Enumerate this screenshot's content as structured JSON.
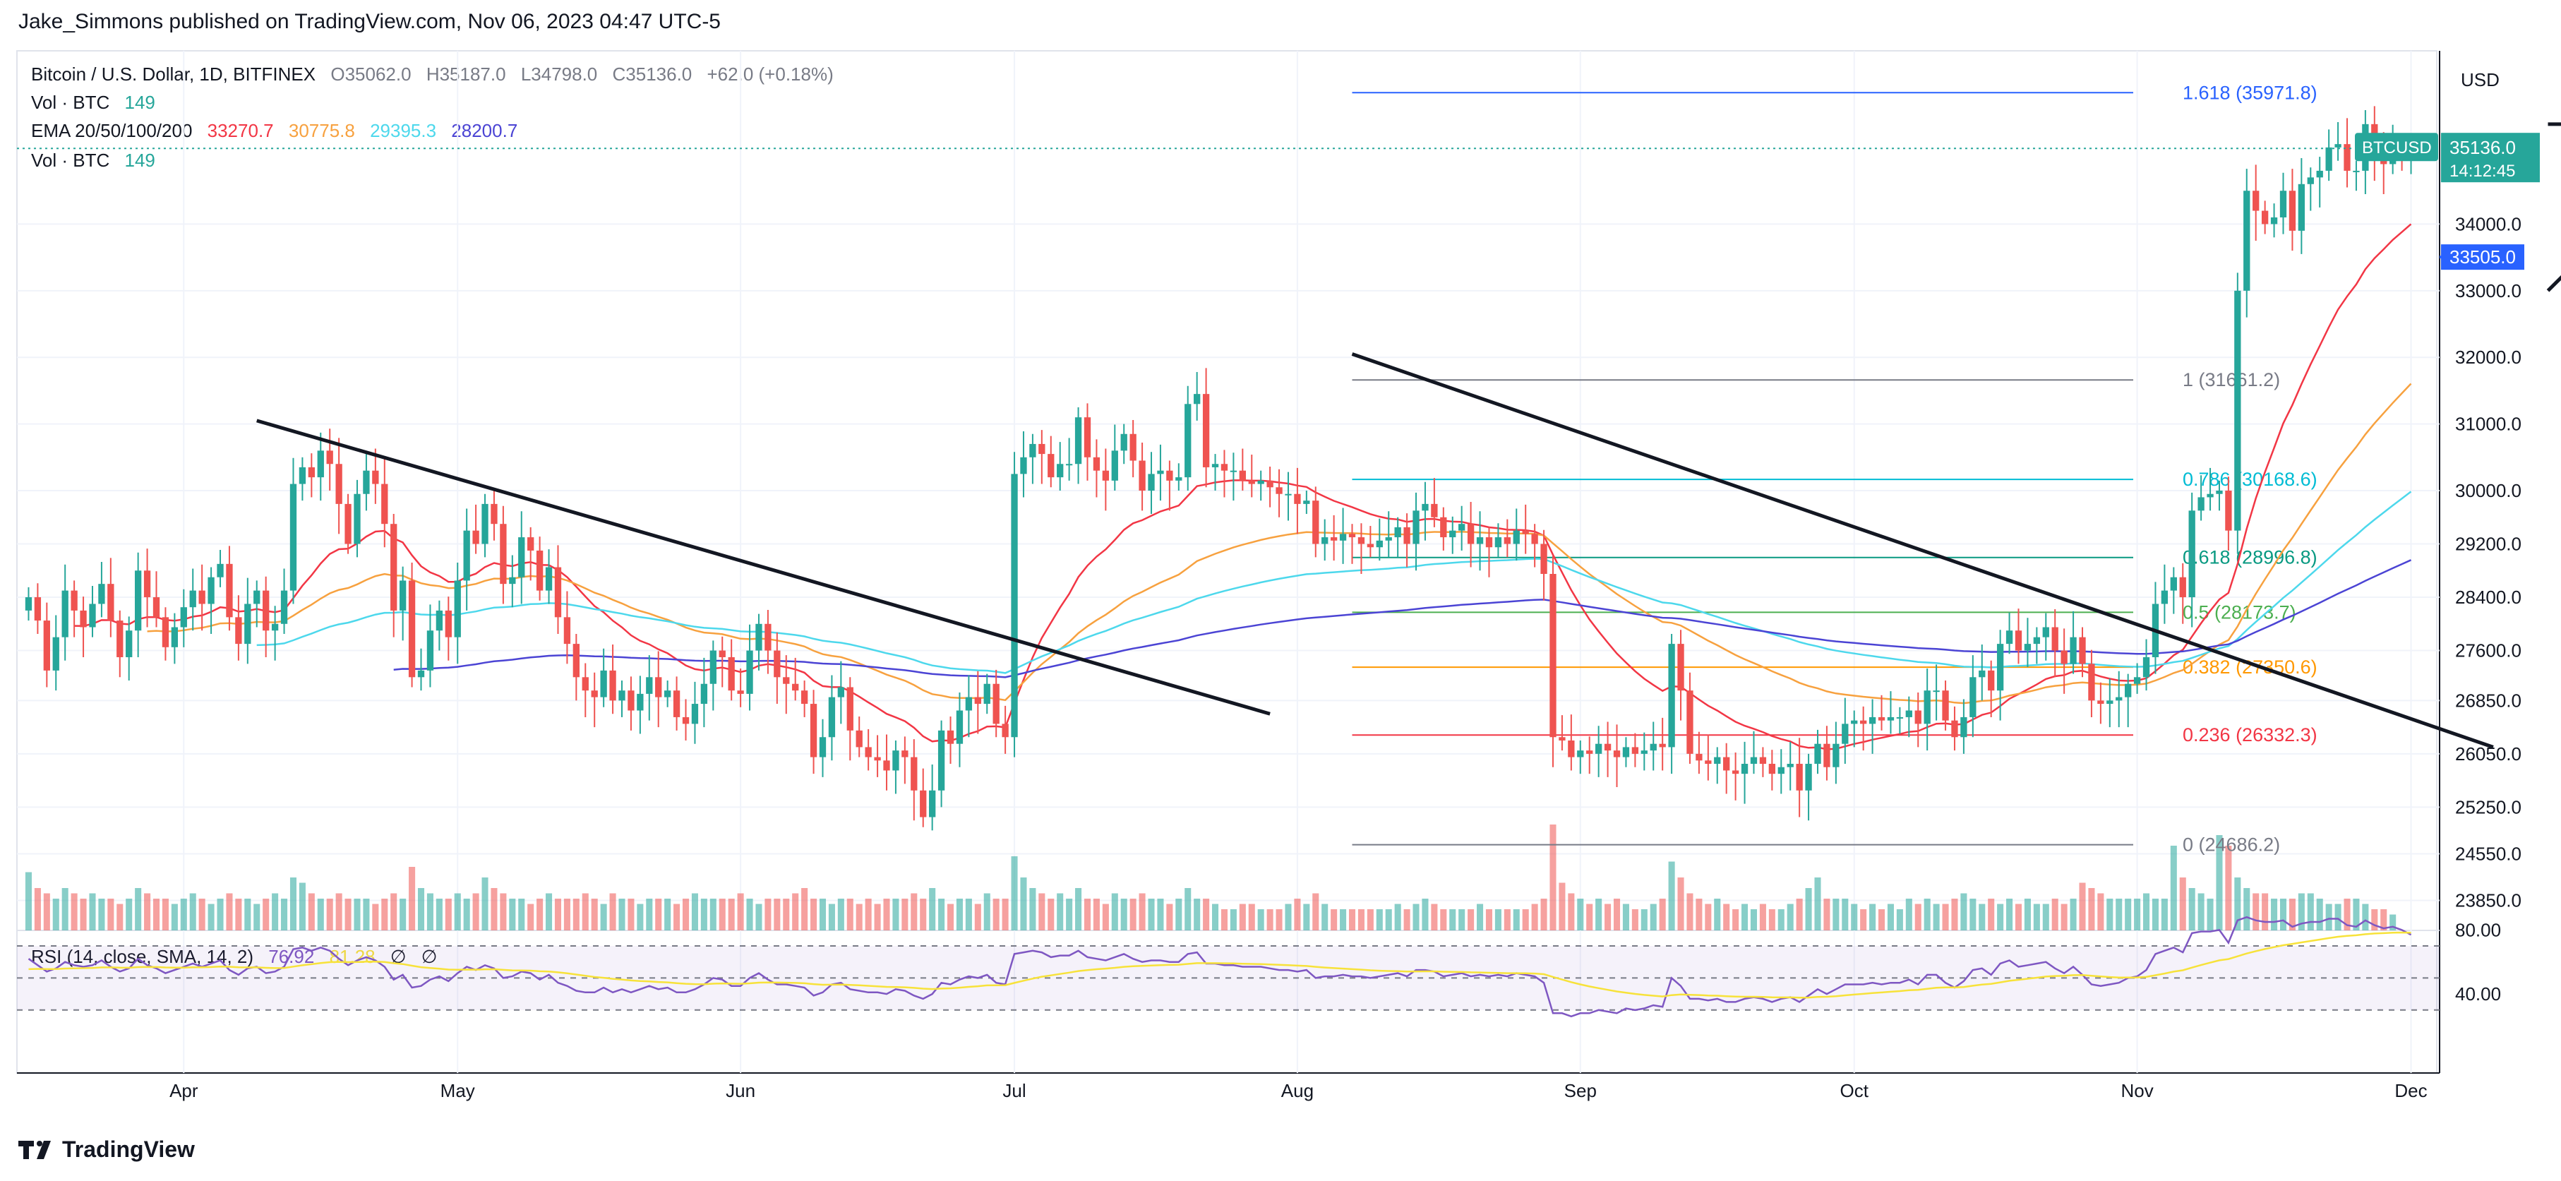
{
  "header": {
    "published_by": "Jake_Simmons published on TradingView.com, Nov 06, 2023 04:47 UTC-5"
  },
  "legend": {
    "symbol": "Bitcoin / U.S. Dollar, 1D, BITFINEX",
    "open": "O35062.0",
    "high": "H35187.0",
    "low": "L34798.0",
    "close": "C35136.0",
    "change": "+62.0 (+0.18%)",
    "vol_label": "Vol · BTC",
    "vol_value": "149",
    "ema_label": "EMA 20/50/100/200",
    "ema20": "33270.7",
    "ema50": "30775.8",
    "ema100": "29395.3",
    "ema200": "28200.7",
    "vol2_label": "Vol · BTC",
    "vol2_value": "149",
    "rsi_label": "RSI (14, close, SMA, 14, 2)",
    "rsi_value": "76.92",
    "rsi_sma": "81.28",
    "rsi_extra1": "∅",
    "rsi_extra2": "∅"
  },
  "footer": {
    "logo_text": "TradingView"
  },
  "colors": {
    "up": "#26a69a",
    "down": "#ef5350",
    "ema20": "#f23645",
    "ema50": "#f7a13f",
    "ema100": "#4dd8ec",
    "ema200": "#4b44d4",
    "rsi": "#7e57c2",
    "rsi_sma": "#f7e23a"
  },
  "chart_data": {
    "type": "candlestick",
    "y_axis": {
      "currency": "USD",
      "ticks": [
        "34000.0",
        "33000.0",
        "32000.0",
        "31000.0",
        "30000.0",
        "29200.0",
        "28400.0",
        "27600.0",
        "26850.0",
        "26050.0",
        "25250.0",
        "24550.0",
        "23850.0"
      ],
      "range": [
        23400,
        36600
      ]
    },
    "x_axis": {
      "ticks": [
        "Apr",
        "May",
        "Jun",
        "Jul",
        "Aug",
        "Sep",
        "Oct",
        "Nov",
        "Dec"
      ]
    },
    "current_price": {
      "label": "BTCUSD",
      "value": "35136.0",
      "countdown": "14:12:45"
    },
    "support_label": "33505.0",
    "fibonacci": [
      {
        "level": "1.618",
        "price": 35971.8,
        "label": "1.618 (35971.8)",
        "color": "#2962ff"
      },
      {
        "level": "1",
        "price": 31661.2,
        "label": "1 (31661.2)",
        "color": "#787b86"
      },
      {
        "level": "0.786",
        "price": 30168.6,
        "label": "0.786 (30168.6)",
        "color": "#00bcd4"
      },
      {
        "level": "0.618",
        "price": 28996.8,
        "label": "0.618 (28996.8)",
        "color": "#089981"
      },
      {
        "level": "0.5",
        "price": 28173.7,
        "label": "0.5 (28173.7)",
        "color": "#4caf50"
      },
      {
        "level": "0.382",
        "price": 27350.6,
        "label": "0.382 (27350.6)",
        "color": "#ff9800"
      },
      {
        "level": "0.236",
        "price": 26332.3,
        "label": "0.236 (26332.3)",
        "color": "#f23645"
      },
      {
        "level": "0",
        "price": 24686.2,
        "label": "0 (24686.2)",
        "color": "#787b86"
      }
    ],
    "rsi_axis_ticks": [
      "80.00",
      "40.00"
    ],
    "candles_close": [
      28400,
      28050,
      27300,
      27800,
      28500,
      28200,
      27950,
      28300,
      28600,
      28050,
      27500,
      27900,
      28800,
      28400,
      28100,
      27650,
      27950,
      28250,
      28500,
      28300,
      28700,
      28900,
      28100,
      27700,
      28300,
      28500,
      27900,
      28000,
      28500,
      30100,
      30350,
      30200,
      30600,
      30400,
      29800,
      29200,
      29950,
      30300,
      30100,
      29500,
      28200,
      28650,
      27200,
      27300,
      27900,
      28200,
      27800,
      28650,
      29400,
      29200,
      29800,
      29500,
      28600,
      28700,
      29300,
      29100,
      28500,
      28850,
      28100,
      27700,
      27200,
      27000,
      26900,
      27300,
      26850,
      27000,
      26700,
      26950,
      27200,
      26900,
      27000,
      26600,
      26500,
      26800,
      27100,
      27600,
      27500,
      27000,
      26950,
      27600,
      28000,
      27600,
      27200,
      27100,
      27000,
      26800,
      26000,
      26300,
      26900,
      27050,
      26400,
      26150,
      26000,
      25950,
      25800,
      26100,
      26000,
      25500,
      25100,
      25500,
      26400,
      26200,
      26700,
      26900,
      26800,
      27100,
      26500,
      26300,
      30250,
      30500,
      30700,
      30550,
      30200,
      30400,
      30400,
      31100,
      30500,
      30300,
      30150,
      30600,
      30850,
      30450,
      30000,
      30250,
      30300,
      30150,
      30200,
      31300,
      31450,
      30350,
      30400,
      30300,
      30300,
      30150,
      30100,
      30150,
      30050,
      29950,
      29950,
      29800,
      29850,
      29200,
      29300,
      29250,
      29350,
      29300,
      29200,
      29150,
      29250,
      29300,
      29450,
      29200,
      29700,
      29800,
      29600,
      29300,
      29400,
      29500,
      29200,
      29300,
      29150,
      29300,
      29200,
      29400,
      29350,
      29200,
      28750,
      26300,
      26250,
      26000,
      26100,
      26050,
      26200,
      26100,
      26000,
      26150,
      26050,
      26100,
      26200,
      26150,
      27700,
      27000,
      26050,
      25950,
      25900,
      26000,
      25800,
      25750,
      25900,
      26000,
      25900,
      25750,
      25850,
      25900,
      25500,
      25900,
      26200,
      25850,
      26200,
      26500,
      26550,
      26500,
      26600,
      26550,
      26600,
      26600,
      26700,
      26500,
      27000,
      27000,
      26550,
      26300,
      26600,
      27200,
      27300,
      27000,
      27700,
      27900,
      27600,
      27700,
      27800,
      27950,
      27600,
      27400,
      27800,
      27400,
      26850,
      26800,
      26850,
      26900,
      27100,
      27200,
      27500,
      28300,
      28500,
      28700,
      28400,
      29700,
      29900,
      29950,
      30000,
      29400,
      33000,
      34500,
      34200,
      34000,
      34100,
      34500,
      33900,
      34600,
      34700,
      34800,
      35150,
      35200,
      34800,
      34800,
      35500,
      35050,
      34900,
      35100,
      35000,
      35136
    ],
    "volumes_relative": [
      0.55,
      0.4,
      0.35,
      0.3,
      0.4,
      0.35,
      0.3,
      0.35,
      0.3,
      0.3,
      0.25,
      0.3,
      0.4,
      0.35,
      0.3,
      0.3,
      0.25,
      0.3,
      0.35,
      0.3,
      0.25,
      0.3,
      0.35,
      0.3,
      0.3,
      0.25,
      0.3,
      0.35,
      0.3,
      0.5,
      0.45,
      0.35,
      0.3,
      0.3,
      0.35,
      0.3,
      0.3,
      0.3,
      0.25,
      0.3,
      0.35,
      0.3,
      0.6,
      0.4,
      0.35,
      0.3,
      0.3,
      0.35,
      0.3,
      0.35,
      0.5,
      0.4,
      0.35,
      0.3,
      0.3,
      0.25,
      0.3,
      0.35,
      0.3,
      0.3,
      0.3,
      0.35,
      0.3,
      0.25,
      0.35,
      0.3,
      0.3,
      0.25,
      0.3,
      0.3,
      0.3,
      0.25,
      0.3,
      0.35,
      0.3,
      0.3,
      0.3,
      0.3,
      0.35,
      0.3,
      0.25,
      0.3,
      0.3,
      0.3,
      0.35,
      0.4,
      0.3,
      0.3,
      0.25,
      0.3,
      0.3,
      0.25,
      0.3,
      0.25,
      0.3,
      0.3,
      0.3,
      0.35,
      0.3,
      0.4,
      0.3,
      0.25,
      0.3,
      0.3,
      0.25,
      0.35,
      0.3,
      0.3,
      0.7,
      0.5,
      0.4,
      0.35,
      0.3,
      0.35,
      0.3,
      0.4,
      0.3,
      0.3,
      0.25,
      0.35,
      0.3,
      0.3,
      0.35,
      0.3,
      0.3,
      0.25,
      0.3,
      0.4,
      0.3,
      0.3,
      0.25,
      0.2,
      0.2,
      0.25,
      0.25,
      0.2,
      0.2,
      0.2,
      0.25,
      0.3,
      0.25,
      0.35,
      0.25,
      0.2,
      0.2,
      0.2,
      0.2,
      0.2,
      0.2,
      0.2,
      0.25,
      0.2,
      0.25,
      0.3,
      0.25,
      0.2,
      0.2,
      0.2,
      0.2,
      0.25,
      0.2,
      0.2,
      0.2,
      0.2,
      0.2,
      0.25,
      0.3,
      1.0,
      0.45,
      0.35,
      0.3,
      0.25,
      0.3,
      0.25,
      0.3,
      0.25,
      0.2,
      0.2,
      0.25,
      0.3,
      0.65,
      0.5,
      0.35,
      0.3,
      0.25,
      0.3,
      0.25,
      0.2,
      0.25,
      0.2,
      0.25,
      0.2,
      0.2,
      0.25,
      0.3,
      0.4,
      0.5,
      0.3,
      0.3,
      0.3,
      0.25,
      0.2,
      0.25,
      0.2,
      0.25,
      0.2,
      0.3,
      0.25,
      0.3,
      0.25,
      0.25,
      0.3,
      0.35,
      0.3,
      0.25,
      0.3,
      0.25,
      0.3,
      0.25,
      0.3,
      0.25,
      0.25,
      0.3,
      0.25,
      0.3,
      0.45,
      0.4,
      0.35,
      0.3,
      0.3,
      0.3,
      0.3,
      0.35,
      0.3,
      0.3,
      0.8,
      0.5,
      0.4,
      0.35,
      0.3,
      0.9,
      0.8,
      0.5,
      0.4,
      0.35,
      0.35,
      0.3,
      0.3,
      0.3,
      0.35,
      0.35,
      0.3,
      0.25,
      0.25,
      0.3,
      0.3,
      0.25,
      0.2,
      0.2,
      0.15
    ],
    "ema20_note": "EMA lines are derived from closes",
    "rsi_series": [
      62,
      58,
      54,
      56,
      60,
      58,
      57,
      58,
      61,
      57,
      54,
      56,
      62,
      58,
      56,
      53,
      55,
      57,
      59,
      57,
      59,
      61,
      55,
      52,
      56,
      57,
      53,
      54,
      57,
      68,
      69,
      67,
      69,
      67,
      62,
      58,
      61,
      63,
      61,
      57,
      49,
      52,
      44,
      45,
      49,
      51,
      48,
      53,
      57,
      55,
      58,
      56,
      50,
      51,
      54,
      53,
      49,
      52,
      47,
      45,
      42,
      41,
      41,
      44,
      41,
      43,
      41,
      43,
      45,
      43,
      44,
      41,
      41,
      43,
      46,
      50,
      49,
      45,
      45,
      50,
      53,
      49,
      46,
      46,
      45,
      44,
      39,
      41,
      46,
      47,
      43,
      42,
      41,
      41,
      40,
      43,
      42,
      39,
      37,
      40,
      47,
      46,
      49,
      51,
      50,
      52,
      47,
      46,
      65,
      66,
      67,
      66,
      63,
      64,
      64,
      67,
      63,
      62,
      61,
      63,
      65,
      62,
      60,
      61,
      61,
      60,
      60,
      65,
      66,
      59,
      59,
      58,
      58,
      57,
      57,
      57,
      56,
      55,
      55,
      54,
      55,
      50,
      51,
      51,
      52,
      51,
      51,
      50,
      51,
      52,
      53,
      51,
      55,
      55,
      54,
      51,
      52,
      53,
      51,
      52,
      51,
      52,
      51,
      53,
      52,
      51,
      47,
      28,
      28,
      26,
      28,
      28,
      30,
      29,
      28,
      31,
      30,
      31,
      33,
      32,
      50,
      45,
      37,
      37,
      36,
      37,
      35,
      35,
      37,
      38,
      37,
      35,
      37,
      38,
      35,
      39,
      43,
      40,
      43,
      46,
      46,
      46,
      47,
      46,
      47,
      47,
      49,
      46,
      52,
      52,
      47,
      44,
      48,
      55,
      56,
      52,
      59,
      61,
      57,
      58,
      59,
      60,
      56,
      53,
      57,
      52,
      46,
      45,
      46,
      47,
      50,
      51,
      55,
      65,
      67,
      69,
      66,
      78,
      79,
      79,
      80,
      72,
      86,
      88,
      86,
      85,
      85,
      86,
      82,
      84,
      85,
      85,
      87,
      87,
      83,
      82,
      86,
      83,
      81,
      82,
      80,
      77
    ],
    "rsi_sma_series_start": 55
  }
}
